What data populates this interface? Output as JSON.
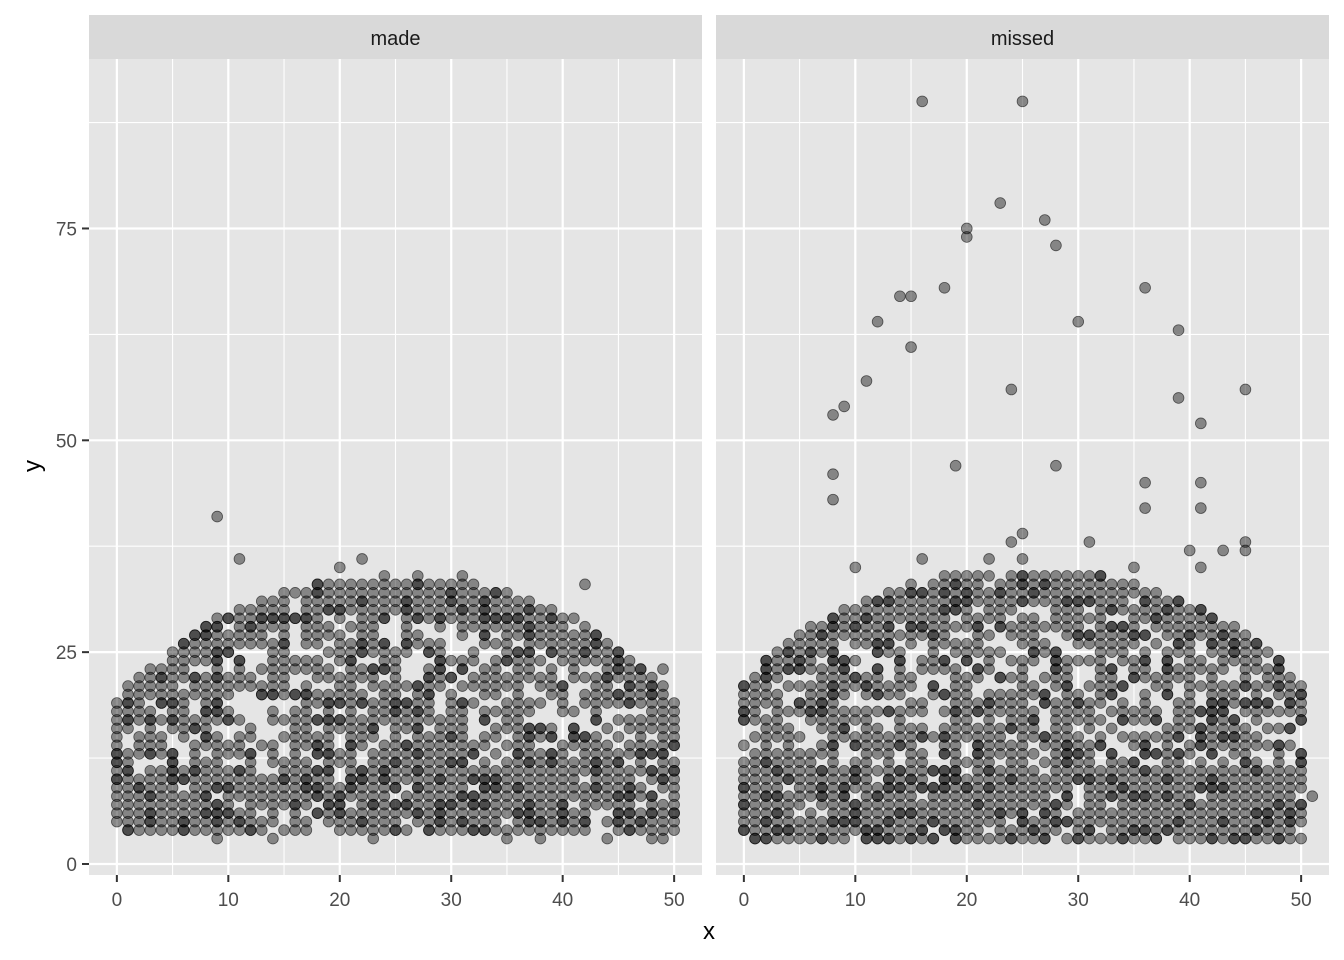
{
  "chart_data": {
    "type": "scatter",
    "facet_by": "shot result",
    "xlabel": "x",
    "ylabel": "y",
    "xlim": [
      -2.5,
      52.5
    ],
    "ylim": [
      -1.3,
      95
    ],
    "x_ticks": [
      0,
      10,
      20,
      30,
      40,
      50
    ],
    "y_ticks": [
      0,
      25,
      50,
      75
    ],
    "grid": true,
    "point_color": "#000000",
    "point_alpha": 0.42,
    "panel_background": "#e5e5e5",
    "strip_background": "#d9d9d9",
    "grid_color": "#ffffff",
    "panels": [
      {
        "label": "made",
        "outliers": [
          [
            9,
            41
          ],
          [
            11,
            36
          ],
          [
            22,
            36
          ],
          [
            20,
            35
          ],
          [
            42,
            33
          ],
          [
            49,
            23
          ],
          [
            1,
            19
          ],
          [
            9,
            3
          ],
          [
            14,
            3
          ],
          [
            23,
            3
          ],
          [
            35,
            3
          ],
          [
            38,
            3
          ],
          [
            44,
            3
          ],
          [
            48,
            3
          ],
          [
            49,
            3
          ],
          [
            31,
            34
          ],
          [
            27,
            34
          ],
          [
            24,
            34
          ],
          [
            18,
            33
          ]
        ],
        "density_grid": {
          "x_range": [
            0,
            50
          ],
          "y_min": 4,
          "arc_center": 25,
          "arc_radius": 30,
          "arc_height": 32
        }
      },
      {
        "label": "missed",
        "outliers": [
          [
            16,
            90
          ],
          [
            25,
            90
          ],
          [
            23,
            78
          ],
          [
            27,
            76
          ],
          [
            20,
            75
          ],
          [
            20,
            74
          ],
          [
            28,
            73
          ],
          [
            18,
            68
          ],
          [
            36,
            68
          ],
          [
            14,
            67
          ],
          [
            15,
            67
          ],
          [
            12,
            64
          ],
          [
            30,
            64
          ],
          [
            39,
            63
          ],
          [
            15,
            61
          ],
          [
            11,
            57
          ],
          [
            24,
            56
          ],
          [
            45,
            56
          ],
          [
            39,
            55
          ],
          [
            9,
            54
          ],
          [
            8,
            53
          ],
          [
            41,
            52
          ],
          [
            19,
            47
          ],
          [
            28,
            47
          ],
          [
            8,
            46
          ],
          [
            36,
            45
          ],
          [
            41,
            45
          ],
          [
            8,
            43
          ],
          [
            36,
            42
          ],
          [
            41,
            42
          ],
          [
            25,
            39
          ],
          [
            24,
            38
          ],
          [
            31,
            38
          ],
          [
            45,
            38
          ],
          [
            40,
            37
          ],
          [
            43,
            37
          ],
          [
            45,
            37
          ],
          [
            16,
            36
          ],
          [
            22,
            36
          ],
          [
            25,
            36
          ],
          [
            10,
            35
          ],
          [
            35,
            35
          ],
          [
            41,
            35
          ],
          [
            51,
            8
          ],
          [
            32,
            3
          ],
          [
            12,
            3
          ],
          [
            13,
            3
          ],
          [
            1,
            3
          ],
          [
            48,
            3
          ]
        ],
        "density_grid": {
          "x_range": [
            0,
            50
          ],
          "y_min": 3,
          "arc_center": 25,
          "arc_radius": 31,
          "arc_height": 33
        }
      }
    ]
  }
}
